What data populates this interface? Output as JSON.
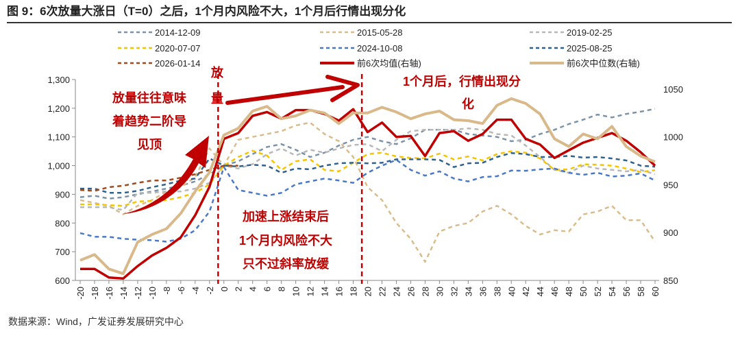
{
  "title": "图 9：6次放量大涨日（T=0）之后，1个月内风险不大，1个月后行情出现分化",
  "source": "数据来源：Wind，广发证券发展研究中心",
  "chart_data": {
    "type": "line",
    "x": [
      -20,
      -18,
      -16,
      -14,
      -12,
      -10,
      -8,
      -6,
      -4,
      -2,
      0,
      2,
      4,
      6,
      8,
      10,
      12,
      14,
      16,
      18,
      20,
      22,
      24,
      26,
      28,
      30,
      32,
      34,
      36,
      38,
      40,
      42,
      44,
      46,
      48,
      50,
      52,
      54,
      56,
      58,
      60
    ],
    "x_ticks": [
      "-20",
      "-18",
      "-16",
      "-14",
      "-12",
      "-10",
      "-8",
      "-6",
      "-4",
      "-2",
      "0",
      "2",
      "4",
      "6",
      "8",
      "10",
      "12",
      "14",
      "16",
      "18",
      "20",
      "22",
      "24",
      "26",
      "28",
      "30",
      "32",
      "34",
      "36",
      "38",
      "40",
      "42",
      "44",
      "46",
      "48",
      "50",
      "52",
      "54",
      "56",
      "58",
      "60"
    ],
    "ylim_left": [
      600,
      1300
    ],
    "yticks_left": [
      "600",
      "700",
      "800",
      "900",
      "1,000",
      "1,100",
      "1,200",
      "1,300"
    ],
    "ylim_right": [
      850,
      1060
    ],
    "yticks_right": [
      "850",
      "900",
      "950",
      "1000",
      "1050"
    ],
    "event_markers": [
      0,
      20
    ],
    "grid": false,
    "legend_position": "top",
    "series": [
      {
        "name": "2014-12-09",
        "axis": "left",
        "style": "dashed",
        "color": "#7b93a8",
        "values": [
          890,
          895,
          885,
          890,
          900,
          910,
          920,
          930,
          945,
          970,
          1000,
          1015,
          1040,
          1065,
          1075,
          1055,
          1030,
          1045,
          1070,
          1090,
          1100,
          1085,
          1075,
          1095,
          1125,
          1125,
          1125,
          1110,
          1105,
          1100,
          1085,
          1090,
          1110,
          1125,
          1145,
          1160,
          1178,
          1168,
          1180,
          1188,
          1198
        ]
      },
      {
        "name": "2015-05-28",
        "axis": "left",
        "style": "dashed",
        "color": "#d9bc8c",
        "values": [
          880,
          870,
          860,
          830,
          860,
          880,
          910,
          925,
          960,
          1060,
          1000,
          1090,
          1100,
          1110,
          1120,
          1140,
          1150,
          1110,
          1085,
          1030,
          925,
          880,
          800,
          745,
          665,
          770,
          790,
          800,
          840,
          860,
          830,
          790,
          760,
          775,
          770,
          830,
          840,
          860,
          810,
          810,
          735
        ]
      },
      {
        "name": "2019-02-25",
        "axis": "left",
        "style": "dashed",
        "color": "#b8b8b8",
        "values": [
          855,
          855,
          855,
          845,
          905,
          905,
          910,
          910,
          920,
          940,
          1000,
          990,
          1005,
          1040,
          1060,
          1035,
          1055,
          1045,
          1060,
          1072,
          1075,
          1050,
          1090,
          1120,
          1125,
          1125,
          1125,
          1130,
          1125,
          1110,
          1105,
          1070,
          1030,
          985,
          975,
          1000,
          990,
          985,
          980,
          985,
          970
        ]
      },
      {
        "name": "2020-07-07",
        "axis": "left",
        "style": "dashed",
        "color": "#f5c400",
        "values": [
          865,
          865,
          862,
          860,
          875,
          877,
          880,
          890,
          905,
          935,
          1000,
          1030,
          1052,
          1035,
          985,
          1015,
          1022,
          985,
          980,
          1010,
          1040,
          1045,
          1032,
          1027,
          1025,
          1042,
          1022,
          1032,
          1018,
          1040,
          1050,
          1045,
          1025,
          985,
          987,
          1005,
          1003,
          1000,
          990,
          978,
          984
        ]
      },
      {
        "name": "2024-10-08",
        "axis": "left",
        "style": "dashed",
        "color": "#4a78c8",
        "values": [
          765,
          752,
          752,
          745,
          742,
          740,
          735,
          745,
          775,
          840,
          995,
          915,
          905,
          895,
          905,
          935,
          945,
          955,
          948,
          940,
          975,
          1000,
          1020,
          985,
          965,
          980,
          955,
          945,
          960,
          963,
          983,
          982,
          987,
          990,
          975,
          968,
          975,
          962,
          965,
          973,
          948
        ]
      },
      {
        "name": "2025-08-25",
        "axis": "left",
        "style": "dashed",
        "color": "#2f618f",
        "values": [
          920,
          920,
          905,
          905,
          912,
          925,
          935,
          948,
          955,
          1025,
          1000,
          997,
          1003,
          1000,
          975,
          990,
          987,
          1000,
          1008,
          1010,
          1008,
          1010,
          1022,
          1022,
          1022,
          1020,
          995,
          1008,
          1010,
          1030,
          1044,
          1040,
          1030,
          1030,
          1034,
          1028,
          1030,
          1025,
          1018,
          1000,
          996
        ]
      },
      {
        "name": "2026-01-14",
        "axis": "left",
        "style": "dashed",
        "color": "#9e4a1c",
        "values": [
          915,
          912,
          925,
          930,
          940,
          948,
          948,
          958,
          970,
          985,
          1000,
          1000,
          null,
          null,
          null,
          null,
          null,
          null,
          null,
          null,
          null,
          null,
          null,
          null,
          null,
          null,
          null,
          null,
          null,
          null,
          null,
          null,
          null,
          null,
          null,
          null,
          null,
          null,
          null,
          null,
          null
        ]
      },
      {
        "name": "前6次均值(右轴)",
        "axis": "right",
        "style": "solid",
        "color": "#c00000",
        "values": [
          862,
          862,
          853,
          852,
          865,
          876,
          884,
          895,
          918,
          948,
          998,
          1004,
          1022,
          1026,
          1019,
          1028,
          1028,
          1024,
          1017,
          1029,
          1005,
          1015,
          1000,
          1001,
          980,
          1004,
          1006,
          996,
          1003,
          1018,
          1018,
          998,
          992,
          978,
          986,
          994,
          999,
          1004,
          996,
          984,
          970
        ]
      },
      {
        "name": "前6次中位数(右轴)",
        "axis": "right",
        "style": "solid",
        "color": "#d9b98a",
        "values": [
          871,
          877,
          862,
          857,
          890,
          898,
          904,
          920,
          943,
          963,
          1002,
          1009,
          1027,
          1032,
          1019,
          1022,
          1028,
          1025,
          1014,
          1025,
          1025,
          1031,
          1026,
          1019,
          1024,
          1027,
          1018,
          1017,
          1014,
          1033,
          1040,
          1035,
          1024,
          998,
          990,
          1003,
          998,
          1011,
          990,
          980,
          974
        ]
      }
    ],
    "annotations": {
      "left_note": [
        "放量往往意味",
        "着趋势二阶导",
        "见顶"
      ],
      "volume_note": [
        "放",
        "量"
      ],
      "after_note": [
        "1个月后，行情出现分",
        "化"
      ],
      "middle_note": [
        "加速上涨结束后",
        "1个月内风险不大",
        "只不过斜率放缓"
      ]
    }
  }
}
